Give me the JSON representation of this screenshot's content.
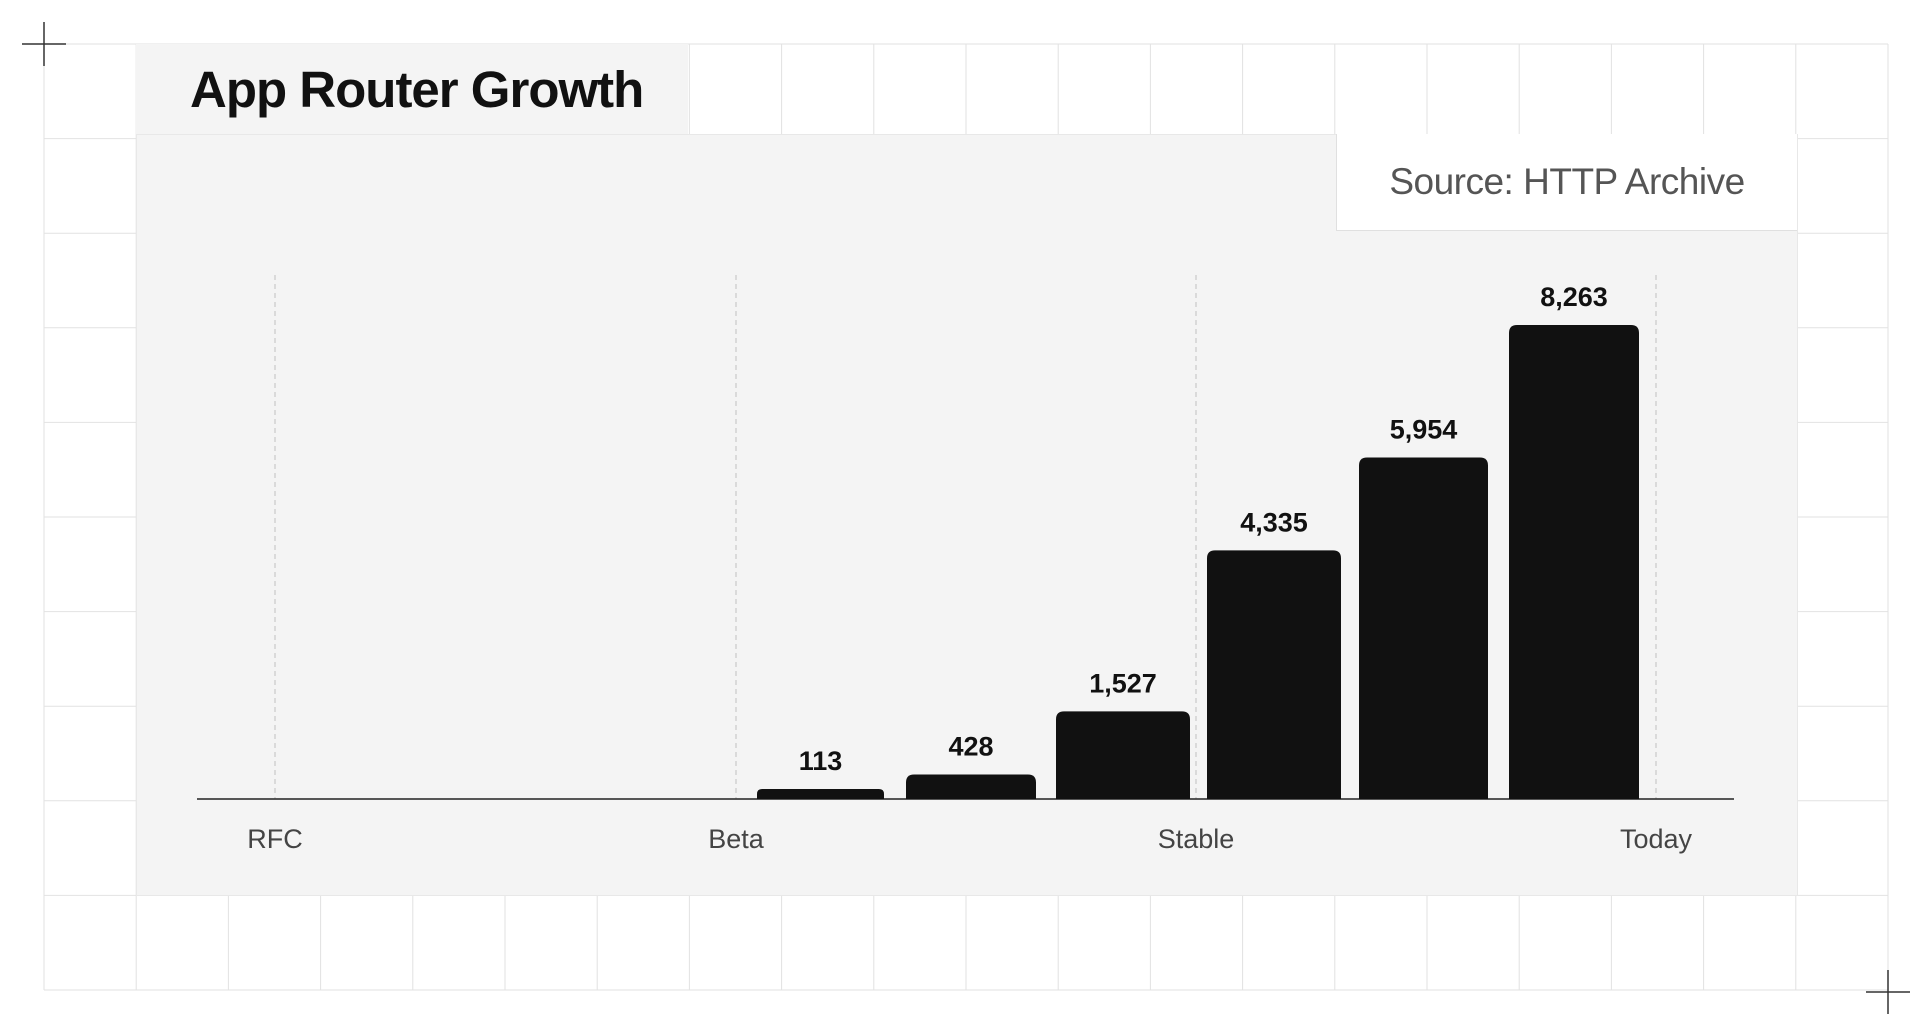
{
  "chart_data": {
    "type": "bar",
    "title": "App Router Growth",
    "subtitle": "Source: HTTP Archive",
    "categories": [
      "",
      "",
      "",
      "",
      "",
      ""
    ],
    "values": [
      113,
      428,
      1527,
      4335,
      5954,
      8263
    ],
    "value_labels": [
      "113",
      "428",
      "1,527",
      "4,335",
      "5,954",
      "8,263"
    ],
    "milestones": [
      "RFC",
      "Beta",
      "Stable",
      "Today"
    ],
    "xlabel": "",
    "ylabel": "",
    "ylim": [
      0,
      8263
    ],
    "grid": false,
    "bar_color": "#111111"
  }
}
